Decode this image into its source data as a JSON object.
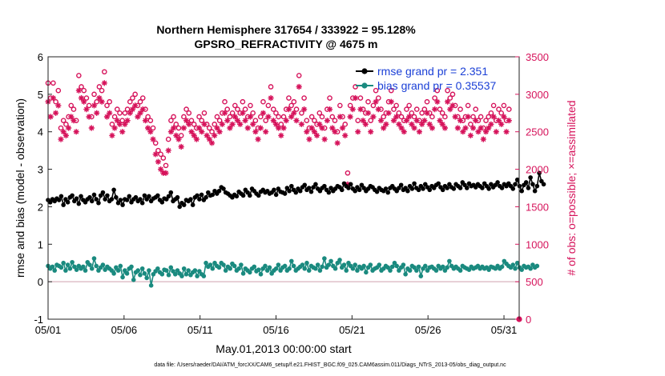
{
  "chart_data": {
    "type": "line",
    "title": "Northern Hemisphere 317654 / 333922 = 95.128%",
    "subtitle": "GPSRO_REFRACTIVITY @ 4675 m",
    "xlabel": "May.01,2013 00:00:00 start",
    "ylabel": "rmse and bias (model - observation)",
    "ylabel_right": "# of obs: o=possible; ×=assimilated",
    "footnote": "data file: /Users/raeder/DAI/ATM_forcXX/CAM6_setup/f.e21.FHIST_BGC.f09_025.CAM6assim.011/Diags_NTrS_2013-05/obs_diag_output.nc",
    "x_tick_labels": [
      "05/01",
      "05/06",
      "05/11",
      "05/16",
      "05/21",
      "05/26",
      "05/31"
    ],
    "x_tick_days": [
      1,
      6,
      11,
      16,
      21,
      26,
      31
    ],
    "xlim": [
      1,
      32
    ],
    "ylim": [
      -1,
      6
    ],
    "ylim_right": [
      0,
      3500
    ],
    "y_ticks": [
      "-1",
      "0",
      "1",
      "2",
      "3",
      "4",
      "5",
      "6"
    ],
    "y_ticks_right": [
      "0",
      "500",
      "1000",
      "1500",
      "2000",
      "2500",
      "3000",
      "3500"
    ],
    "grid": false,
    "legend_position": "top-right",
    "colors": {
      "rmse": "#000000",
      "bias": "#1a8a7f",
      "counts": "#d6135b",
      "legend_text": "#1a3fd6",
      "zero_line": "#d8b3bd"
    },
    "series": [
      {
        "name": "rmse grand pr = 2.351",
        "axis": "left",
        "marker": "filled-circle",
        "values": [
          2.18,
          2.12,
          2.2,
          2.15,
          2.22,
          2.18,
          2.28,
          2.05,
          2.2,
          2.12,
          2.25,
          2.3,
          2.15,
          2.22,
          2.08,
          2.28,
          2.18,
          2.12,
          2.2,
          2.25,
          2.15,
          2.32,
          2.2,
          2.1,
          2.3,
          2.38,
          2.2,
          2.3,
          2.15,
          2.2,
          2.45,
          2.25,
          2.1,
          2.18,
          2.05,
          2.2,
          2.18,
          2.28,
          2.12,
          2.2,
          2.25,
          2.15,
          2.2,
          2.1,
          2.3,
          2.2,
          2.28,
          2.15,
          2.22,
          2.25,
          2.3,
          2.18,
          2.12,
          2.22,
          2.2,
          2.28,
          2.38,
          2.15,
          2.2,
          2.25,
          2.0,
          2.1,
          2.05,
          2.18,
          2.15,
          2.2,
          2.05,
          2.25,
          2.3,
          2.2,
          2.32,
          2.18,
          2.25,
          2.38,
          2.3,
          2.32,
          2.42,
          2.35,
          2.42,
          2.52,
          2.48,
          2.38,
          2.35,
          2.3,
          2.25,
          2.32,
          2.28,
          2.4,
          2.35,
          2.3,
          2.45,
          2.38,
          2.3,
          2.48,
          2.42,
          2.35,
          2.3,
          2.4,
          2.45,
          2.38,
          2.42,
          2.35,
          2.38,
          2.45,
          2.32,
          2.48,
          2.4,
          2.38,
          2.35,
          2.5,
          2.42,
          2.55,
          2.45,
          2.38,
          2.48,
          2.42,
          2.52,
          2.58,
          2.45,
          2.5,
          2.4,
          2.52,
          2.6,
          2.48,
          2.42,
          2.5,
          2.55,
          2.45,
          2.38,
          2.5,
          2.42,
          2.48,
          2.55,
          2.52,
          2.45,
          2.62,
          2.55,
          2.5,
          2.6,
          2.48,
          2.42,
          2.52,
          2.45,
          2.58,
          2.5,
          2.42,
          2.48,
          2.55,
          2.52,
          2.45,
          2.4,
          2.5,
          2.45,
          2.42,
          2.48,
          2.38,
          2.5,
          2.55,
          2.48,
          2.42,
          2.5,
          2.58,
          2.45,
          2.5,
          2.42,
          2.55,
          2.48,
          2.62,
          2.5,
          2.45,
          2.55,
          2.48,
          2.6,
          2.52,
          2.45,
          2.55,
          2.5,
          2.58,
          2.62,
          2.52,
          2.45,
          2.55,
          2.5,
          2.6,
          2.52,
          2.48,
          2.6,
          2.55,
          2.5,
          2.65,
          2.58,
          2.5,
          2.62,
          2.55,
          2.58,
          2.52,
          2.6,
          2.55,
          2.5,
          2.62,
          2.55,
          2.48,
          2.6,
          2.52,
          2.58,
          2.65,
          2.55,
          2.5,
          2.6,
          2.55,
          2.62,
          2.55,
          2.48,
          2.6,
          2.72,
          2.55,
          2.42,
          2.58,
          2.65,
          2.5,
          2.78,
          2.6,
          2.42,
          2.55,
          2.9,
          2.68,
          2.6
        ],
        "x_start_day": 1.0,
        "x_step_days": 0.1443
      },
      {
        "name": "bias grand pr = 0.35537",
        "axis": "left",
        "marker": "filled-circle",
        "values": [
          0.42,
          0.35,
          0.4,
          0.3,
          0.45,
          0.42,
          0.38,
          0.5,
          0.3,
          0.45,
          0.35,
          0.52,
          0.4,
          0.32,
          0.42,
          0.35,
          0.4,
          0.3,
          0.52,
          0.45,
          0.35,
          0.62,
          0.42,
          0.3,
          0.38,
          0.45,
          0.32,
          0.4,
          0.35,
          0.3,
          0.22,
          0.38,
          0.3,
          0.42,
          0.12,
          0.3,
          0.22,
          0.35,
          0.4,
          0.05,
          0.25,
          0.3,
          0.18,
          0.35,
          0.22,
          0.1,
          0.3,
          -0.1,
          0.2,
          0.28,
          0.35,
          0.25,
          0.2,
          0.32,
          0.3,
          0.18,
          0.38,
          0.28,
          0.2,
          0.3,
          0.22,
          0.15,
          0.35,
          0.2,
          0.3,
          0.18,
          0.25,
          0.3,
          0.15,
          0.28,
          0.2,
          0.15,
          0.5,
          0.4,
          0.45,
          0.35,
          0.5,
          0.42,
          0.38,
          0.5,
          0.45,
          0.3,
          0.4,
          0.35,
          0.48,
          0.42,
          0.3,
          0.35,
          0.45,
          0.22,
          0.35,
          0.3,
          0.25,
          0.35,
          0.4,
          0.28,
          0.32,
          0.2,
          0.35,
          0.42,
          0.3,
          0.38,
          0.22,
          0.3,
          0.35,
          0.45,
          0.3,
          0.38,
          0.42,
          0.3,
          0.35,
          0.55,
          0.42,
          0.3,
          0.35,
          0.4,
          0.45,
          0.35,
          0.5,
          0.3,
          0.42,
          0.38,
          0.35,
          0.45,
          0.3,
          0.4,
          0.62,
          0.38,
          0.45,
          0.55,
          0.42,
          0.35,
          0.5,
          0.58,
          0.38,
          0.45,
          0.3,
          0.5,
          0.42,
          0.35,
          0.45,
          0.3,
          0.4,
          0.35,
          0.42,
          0.25,
          0.38,
          0.45,
          0.3,
          0.35,
          0.38,
          0.45,
          0.3,
          0.35,
          0.42,
          0.38,
          0.3,
          0.4,
          0.5,
          0.42,
          0.3,
          0.38,
          0.45,
          0.2,
          0.35,
          0.3,
          0.42,
          0.38,
          0.3,
          0.4,
          0.15,
          0.35,
          0.42,
          0.3,
          0.38,
          0.4,
          0.35,
          0.3,
          0.42,
          0.35,
          0.4,
          0.3,
          0.38,
          0.55,
          0.42,
          0.35,
          0.4,
          0.35,
          0.3,
          0.42,
          0.38,
          0.35,
          0.32,
          0.4,
          0.35,
          0.38,
          0.42,
          0.35,
          0.4,
          0.35,
          0.38,
          0.32,
          0.4,
          0.38,
          0.35,
          0.42,
          0.35,
          0.4,
          0.55,
          0.48,
          0.42,
          0.38,
          0.45,
          0.35,
          0.5,
          0.38,
          0.32,
          0.42,
          0.38,
          0.4,
          0.35,
          0.45,
          0.38,
          0.42
        ],
        "x_start_day": 1.0,
        "x_step_days": 0.1443
      },
      {
        "name": "possible observations",
        "axis": "right",
        "marker": "open-circle",
        "values": [
          3150,
          2950,
          3150,
          2900,
          3050,
          2550,
          2650,
          2600,
          2700,
          2850,
          2800,
          2650,
          3250,
          3100,
          3050,
          2950,
          2850,
          2700,
          3000,
          2900,
          3100,
          3050,
          3300,
          2850,
          2900,
          2600,
          2700,
          2800,
          2750,
          2650,
          2750,
          2800,
          2900,
          2950,
          3000,
          2850,
          2900,
          2950,
          2800,
          2700,
          2650,
          2550,
          2350,
          2250,
          2200,
          2150,
          2050,
          2400,
          2650,
          2700,
          2600,
          2550,
          2450,
          2700,
          2800,
          2750,
          2650,
          2600,
          2550,
          2700,
          2650,
          2750,
          2600,
          2550,
          2500,
          2600,
          2700,
          2650,
          2750,
          2900,
          2800,
          2700,
          2750,
          2850,
          2800,
          2750,
          2900,
          2800,
          2700,
          2850,
          2750,
          2650,
          2550,
          2700,
          2900,
          2650,
          2850,
          3100,
          2800,
          2750,
          2700,
          2600,
          2700,
          2800,
          2950,
          2850,
          2900,
          2800,
          3250,
          2750,
          2950,
          2650,
          2550,
          2700,
          2650,
          2600,
          2750,
          2700,
          2550,
          2800,
          2950,
          2700,
          2650,
          2500,
          2850,
          2700,
          2600,
          1950,
          2850,
          2950,
          3100,
          2650,
          2950,
          2800,
          2750,
          2900,
          2650,
          2850,
          3050,
          2950,
          2800,
          2700,
          2750,
          2900,
          3050,
          2800,
          2850,
          2750,
          2700,
          2650,
          2800,
          2850,
          2750,
          2700,
          2800,
          2650,
          2750,
          2800,
          2900,
          2750,
          2700,
          2950,
          3050,
          2800,
          2750,
          2700,
          3050,
          2950,
          3000,
          2850,
          2700,
          2800,
          2650,
          2700,
          2850,
          2600,
          2700,
          2800,
          2650,
          2700,
          2550,
          2650,
          2700,
          2750,
          2850,
          2650,
          2800,
          2750,
          2850,
          2650,
          2800
        ],
        "x_start_day": 1.0,
        "x_step_days": 0.1685
      },
      {
        "name": "assimilated observations",
        "axis": "right",
        "marker": "asterisk",
        "values": [
          2900,
          2700,
          2950,
          2750,
          2850,
          2400,
          2500,
          2450,
          2550,
          2700,
          2650,
          2500,
          3050,
          2950,
          2900,
          2800,
          2700,
          2550,
          2850,
          2750,
          2950,
          2900,
          3150,
          2700,
          2750,
          2450,
          2550,
          2650,
          2600,
          2500,
          2600,
          2650,
          2750,
          2800,
          2850,
          2700,
          2750,
          2800,
          2650,
          2550,
          2500,
          2400,
          2200,
          2100,
          2000,
          1950,
          1950,
          2250,
          2500,
          2550,
          2450,
          2400,
          2300,
          2550,
          2650,
          2600,
          2500,
          2450,
          2400,
          2550,
          2500,
          2600,
          2450,
          2400,
          2350,
          2450,
          2550,
          2500,
          2600,
          2750,
          2650,
          2550,
          2600,
          2700,
          2650,
          2600,
          2750,
          2650,
          2550,
          2700,
          2600,
          2500,
          2400,
          2550,
          2750,
          2500,
          2700,
          2950,
          2650,
          2600,
          2550,
          2450,
          2550,
          2650,
          2800,
          2700,
          2750,
          2650,
          3100,
          2600,
          2800,
          2500,
          2400,
          2550,
          2500,
          2450,
          2600,
          2550,
          2400,
          2650,
          2800,
          2550,
          2500,
          2350,
          2700,
          2550,
          2450,
          1800,
          2700,
          2800,
          2950,
          2500,
          2800,
          2650,
          2600,
          2750,
          2500,
          2700,
          2900,
          2800,
          2650,
          2550,
          2600,
          2750,
          2900,
          2650,
          2700,
          2600,
          2550,
          2500,
          2650,
          2700,
          2600,
          2550,
          2650,
          2500,
          2600,
          2650,
          2750,
          2600,
          2550,
          2800,
          2900,
          2650,
          2600,
          2550,
          2900,
          2800,
          2850,
          2700,
          2550,
          2650,
          2500,
          2550,
          2700,
          2450,
          2550,
          2650,
          2500,
          2550,
          2400,
          2500,
          2550,
          2600,
          2700,
          2500,
          2650,
          2600,
          2700,
          2500,
          2650
        ],
        "x_start_day": 1.0,
        "x_step_days": 0.1685
      }
    ]
  }
}
